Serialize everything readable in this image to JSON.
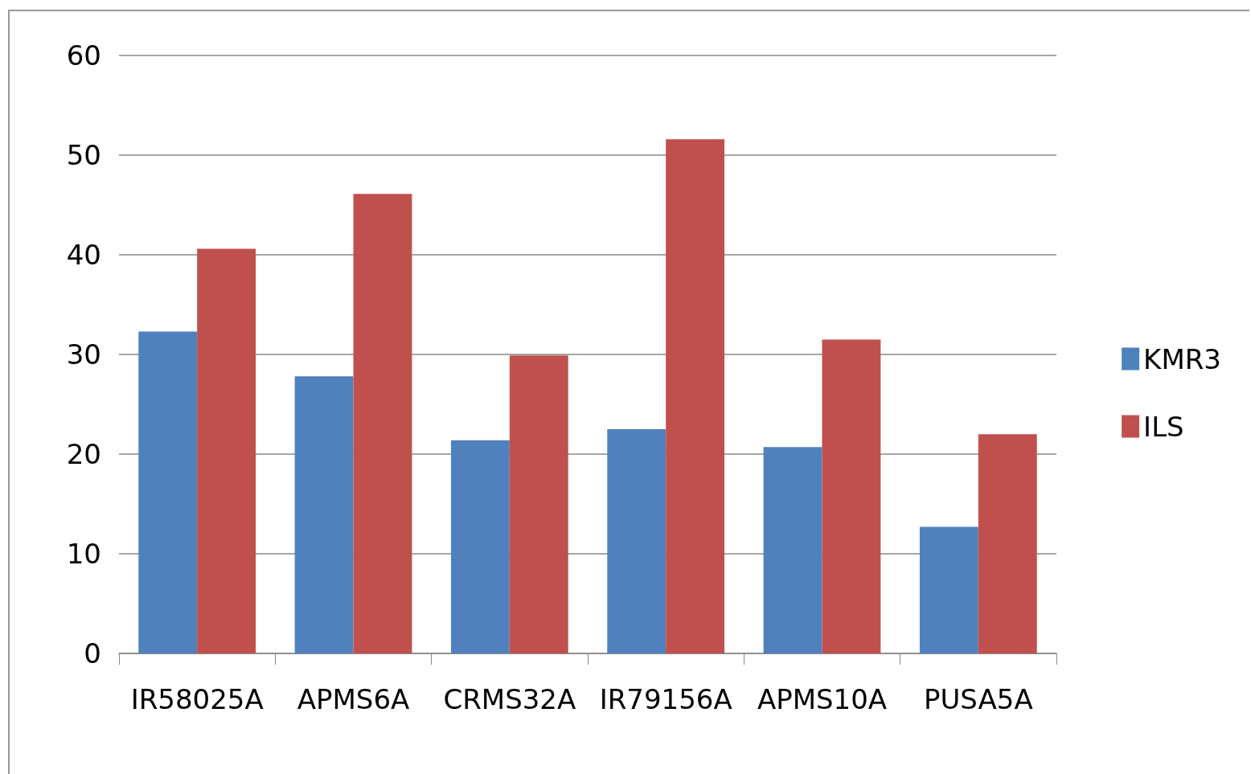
{
  "chart_data": {
    "type": "bar",
    "categories": [
      "IR58025A",
      "APMS6A",
      "CRMS32A",
      "IR79156A",
      "APMS10A",
      "PUSA5A"
    ],
    "series": [
      {
        "name": "KMR3",
        "color": "#4f81bd",
        "values": [
          32.3,
          27.8,
          21.4,
          22.5,
          20.7,
          12.7
        ]
      },
      {
        "name": "ILS",
        "color": "#c0504d",
        "values": [
          40.6,
          46.1,
          29.9,
          51.6,
          31.5,
          22.0
        ]
      }
    ],
    "ylim": [
      0,
      60
    ],
    "yticks": [
      0,
      10,
      20,
      30,
      40,
      50,
      60
    ],
    "grid": "y",
    "legend": "right"
  }
}
